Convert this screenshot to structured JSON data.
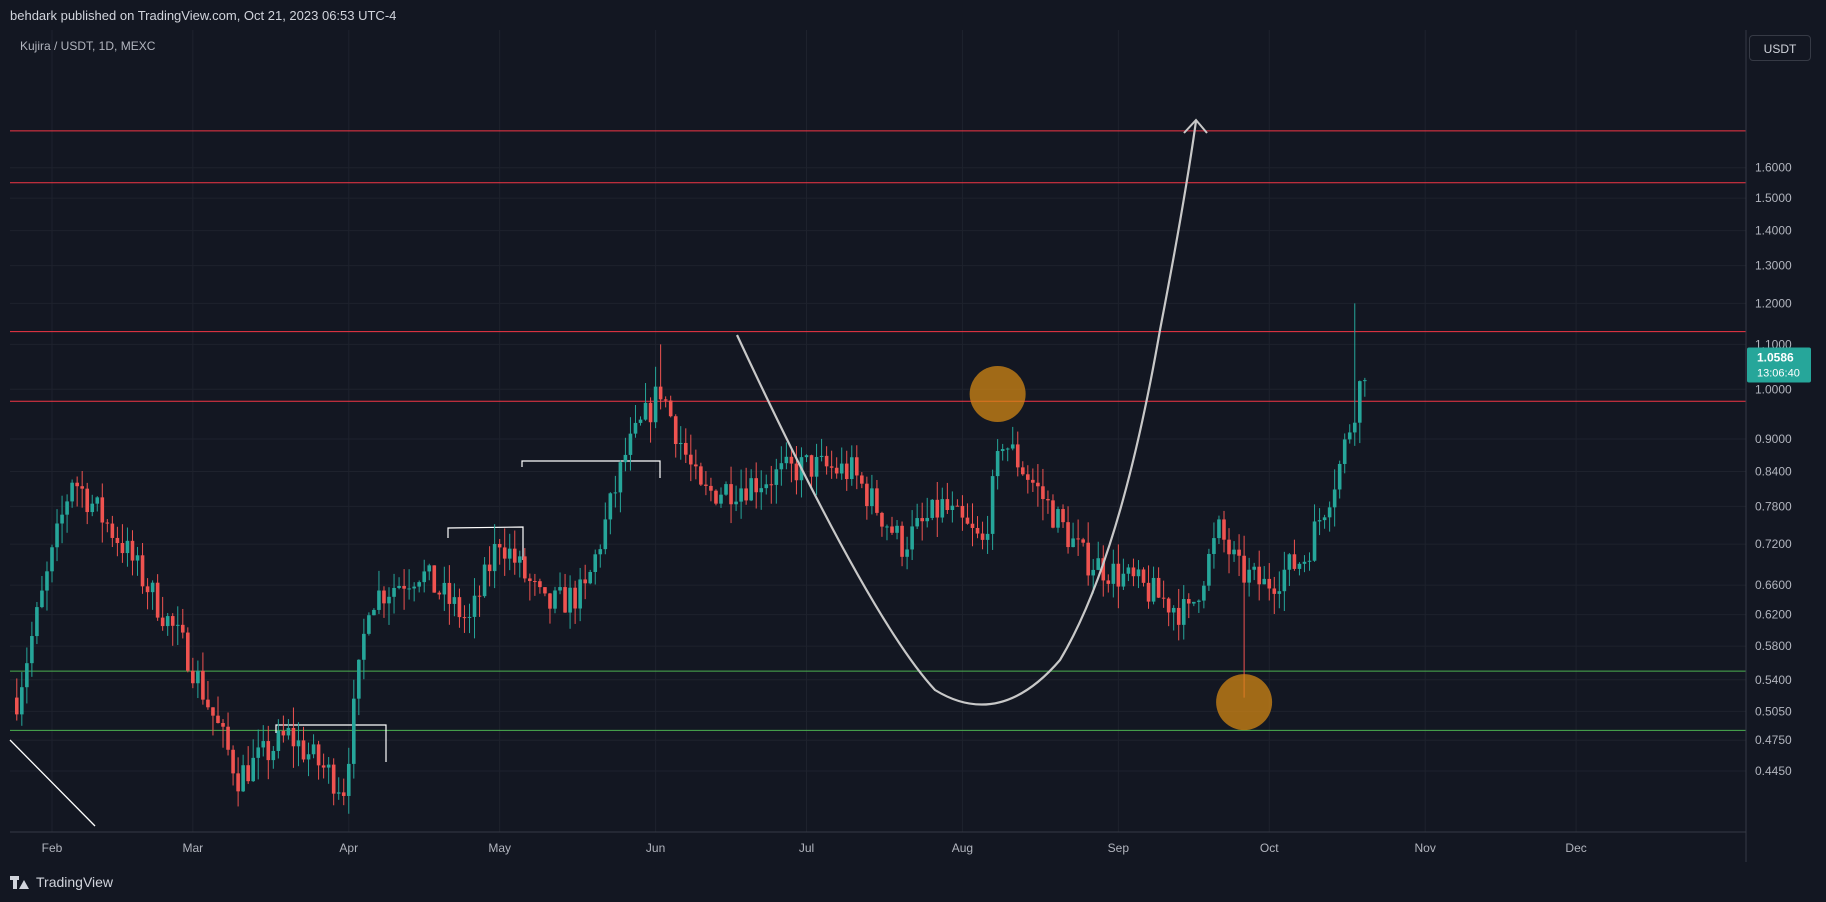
{
  "header": {
    "published_text": "behdark published on TradingView.com, Oct 21, 2023 06:53 UTC-4"
  },
  "symbol": {
    "legend": "Kujira / USDT, 1D, MEXC"
  },
  "currency_button": "USDT",
  "price_badge": {
    "price": "1.0586",
    "countdown": "13:06:40",
    "color": "#26a69a"
  },
  "footer": {
    "brand": "TradingView"
  },
  "colors": {
    "up": "#26a69a",
    "down": "#ef5350",
    "resistance": "#f23645",
    "support": "#4caf50",
    "highlight": "#d88a14",
    "background": "#131722",
    "grid": "#1e222d",
    "text": "#b2b5be"
  },
  "chart_data": {
    "type": "candlestick",
    "title": "Kujira / USDT, 1D, MEXC",
    "y_scale": "log",
    "y_ticks": [
      "1.6000",
      "1.5000",
      "1.4000",
      "1.3000",
      "1.2000",
      "1.1000",
      "1.0000",
      "0.9000",
      "0.8400",
      "0.7800",
      "0.7200",
      "0.6600",
      "0.6200",
      "0.5800",
      "0.5400",
      "0.5050",
      "0.4750",
      "0.4450"
    ],
    "x_ticks": [
      "Feb",
      "Mar",
      "Apr",
      "May",
      "Jun",
      "Jul",
      "Aug",
      "Sep",
      "Oct",
      "Nov",
      "Dec"
    ],
    "last_price": 1.0586,
    "horizontal_levels": [
      {
        "kind": "resistance",
        "price": 1.73
      },
      {
        "kind": "resistance",
        "price": 1.55
      },
      {
        "kind": "resistance",
        "price": 1.13
      },
      {
        "kind": "resistance",
        "price": 0.975
      },
      {
        "kind": "support",
        "price": 0.55
      },
      {
        "kind": "support",
        "price": 0.485
      }
    ],
    "highlights": [
      {
        "date": "2023-08-08",
        "price": 0.99
      },
      {
        "date": "2023-09-26",
        "price": 0.515
      }
    ],
    "anchor_prices": [
      {
        "date": "2023-01-25",
        "price": 0.52
      },
      {
        "date": "2023-02-05",
        "price": 0.83
      },
      {
        "date": "2023-02-15",
        "price": 0.72
      },
      {
        "date": "2023-02-28",
        "price": 0.57
      },
      {
        "date": "2023-03-10",
        "price": 0.44
      },
      {
        "date": "2023-03-20",
        "price": 0.48
      },
      {
        "date": "2023-03-31",
        "price": 0.43
      },
      {
        "date": "2023-04-05",
        "price": 0.64
      },
      {
        "date": "2023-04-15",
        "price": 0.68
      },
      {
        "date": "2023-04-25",
        "price": 0.61
      },
      {
        "date": "2023-05-01",
        "price": 0.73
      },
      {
        "date": "2023-05-10",
        "price": 0.63
      },
      {
        "date": "2023-05-18",
        "price": 0.65
      },
      {
        "date": "2023-05-26",
        "price": 0.87
      },
      {
        "date": "2023-06-02",
        "price": 1.0
      },
      {
        "date": "2023-06-10",
        "price": 0.8
      },
      {
        "date": "2023-06-20",
        "price": 0.82
      },
      {
        "date": "2023-07-01",
        "price": 0.85
      },
      {
        "date": "2023-07-10",
        "price": 0.84
      },
      {
        "date": "2023-07-20",
        "price": 0.72
      },
      {
        "date": "2023-07-28",
        "price": 0.78
      },
      {
        "date": "2023-08-05",
        "price": 0.72
      },
      {
        "date": "2023-08-09",
        "price": 0.9
      },
      {
        "date": "2023-08-15",
        "price": 0.82
      },
      {
        "date": "2023-08-25",
        "price": 0.7
      },
      {
        "date": "2023-09-05",
        "price": 0.66
      },
      {
        "date": "2023-09-15",
        "price": 0.62
      },
      {
        "date": "2023-09-21",
        "price": 0.74
      },
      {
        "date": "2023-09-25",
        "price": 0.68
      },
      {
        "date": "2023-09-30",
        "price": 0.66
      },
      {
        "date": "2023-10-08",
        "price": 0.7
      },
      {
        "date": "2023-10-15",
        "price": 0.85
      },
      {
        "date": "2023-10-20",
        "price": 1.05
      }
    ]
  }
}
